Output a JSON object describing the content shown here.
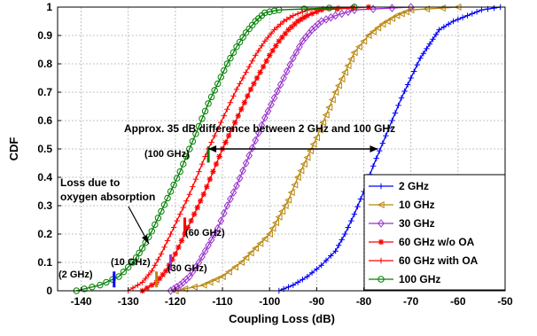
{
  "chart_data": {
    "type": "line",
    "xlabel": "Coupling Loss (dB)",
    "ylabel": "CDF",
    "xlim": [
      -145,
      -50
    ],
    "ylim": [
      0,
      1
    ],
    "xticks": [
      -140,
      -130,
      -120,
      -110,
      -100,
      -90,
      -80,
      -70,
      -60,
      -50
    ],
    "yticks": [
      0,
      0.1,
      0.2,
      0.3,
      0.4,
      0.5,
      0.6,
      0.7,
      0.8,
      0.9,
      1
    ],
    "xtick_labels": [
      "-140",
      "-130",
      "-120",
      "-110",
      "-100",
      "-90",
      "-80",
      "-70",
      "-60",
      "-50"
    ],
    "ytick_labels": [
      "0",
      "0.1",
      "0.2",
      "0.3",
      "0.4",
      "0.5",
      "0.6",
      "0.7",
      "0.8",
      "0.9",
      "1"
    ],
    "grid": true,
    "legend_position": "bottom-right",
    "series": [
      {
        "name": "2 GHz",
        "color": "#0000ff",
        "marker": "plus",
        "x": [
          -98,
          -95,
          -92,
          -89,
          -86,
          -84,
          -82,
          -80,
          -78,
          -76,
          -74,
          -72,
          -70,
          -68,
          -66,
          -64,
          -61,
          -58,
          -55,
          -51
        ],
        "y": [
          0,
          0.02,
          0.05,
          0.09,
          0.14,
          0.2,
          0.27,
          0.35,
          0.44,
          0.52,
          0.6,
          0.68,
          0.75,
          0.82,
          0.87,
          0.92,
          0.95,
          0.97,
          0.99,
          1
        ]
      },
      {
        "name": "10 GHz",
        "color": "#b8860b",
        "marker": "triangle-left",
        "x": [
          -120,
          -114,
          -110,
          -106,
          -103,
          -100,
          -98,
          -96,
          -94,
          -92,
          -90,
          -88,
          -86,
          -84,
          -82,
          -79,
          -76,
          -73,
          -70,
          -60
        ],
        "y": [
          0,
          0.02,
          0.05,
          0.1,
          0.15,
          0.2,
          0.26,
          0.32,
          0.4,
          0.47,
          0.54,
          0.62,
          0.7,
          0.77,
          0.84,
          0.9,
          0.94,
          0.97,
          0.99,
          1
        ]
      },
      {
        "name": "30 GHz",
        "color": "#9932cc",
        "marker": "diamond",
        "x": [
          -121,
          -119,
          -117,
          -115,
          -113,
          -111,
          -109,
          -107,
          -105,
          -103,
          -101,
          -99,
          -97,
          -95,
          -93,
          -91,
          -89,
          -86,
          -82,
          -70
        ],
        "y": [
          0,
          0.02,
          0.05,
          0.1,
          0.16,
          0.22,
          0.3,
          0.37,
          0.45,
          0.53,
          0.61,
          0.68,
          0.75,
          0.82,
          0.88,
          0.92,
          0.95,
          0.97,
          0.99,
          1
        ]
      },
      {
        "name": "60 GHz w/o OA",
        "color": "#ff0000",
        "marker": "star",
        "x": [
          -127,
          -124,
          -122,
          -120,
          -118,
          -116,
          -114,
          -112,
          -110,
          -108,
          -106,
          -104,
          -102,
          -100,
          -98,
          -96,
          -94,
          -92,
          -89,
          -79
        ],
        "y": [
          0,
          0.03,
          0.07,
          0.13,
          0.2,
          0.27,
          0.34,
          0.42,
          0.5,
          0.57,
          0.64,
          0.71,
          0.77,
          0.83,
          0.88,
          0.92,
          0.95,
          0.97,
          0.99,
          1
        ]
      },
      {
        "name": "60 GHz with OA",
        "color": "#ff0000",
        "marker": "plus",
        "x": [
          -130,
          -127,
          -125,
          -123,
          -121,
          -119,
          -117,
          -115,
          -113,
          -111,
          -109,
          -107,
          -105,
          -103,
          -101,
          -99,
          -97,
          -95,
          -92,
          -82
        ],
        "y": [
          0,
          0.03,
          0.07,
          0.13,
          0.2,
          0.27,
          0.34,
          0.42,
          0.5,
          0.57,
          0.64,
          0.71,
          0.77,
          0.83,
          0.88,
          0.92,
          0.95,
          0.97,
          0.99,
          1
        ]
      },
      {
        "name": "100 GHz",
        "color": "#008000",
        "marker": "circle",
        "x": [
          -141,
          -136,
          -132,
          -129,
          -127,
          -125,
          -123,
          -121,
          -119,
          -117,
          -115,
          -113,
          -111,
          -109,
          -107,
          -105,
          -103,
          -101,
          -98,
          -82
        ],
        "y": [
          0,
          0.02,
          0.05,
          0.1,
          0.15,
          0.21,
          0.28,
          0.35,
          0.42,
          0.5,
          0.58,
          0.66,
          0.73,
          0.8,
          0.86,
          0.91,
          0.95,
          0.98,
          0.99,
          1
        ]
      }
    ],
    "median_markers": [
      {
        "x": -133,
        "y": 0.04,
        "color": "#0000ff"
      },
      {
        "x": -124,
        "y": 0.04,
        "color": "#b8860b"
      },
      {
        "x": -121,
        "y": 0.1,
        "color": "#9932cc"
      },
      {
        "x": -118,
        "y": 0.23,
        "color": "#ff0000"
      },
      {
        "x": -113,
        "y": 0.48,
        "color": "#008000"
      }
    ],
    "annotations": {
      "difference_text": "Approx. 35 dB difference between 2 GHz and 100 GHz",
      "loss_text_line1": "Loss due to",
      "loss_text_line2": "oxygen absorption",
      "label_100": "(100 GHz)",
      "label_60": "(60 GHz)",
      "label_30": "(30 GHz)",
      "label_10": "(10 GHz)",
      "label_2": "(2 GHz)",
      "arrow_from_x": -113,
      "arrow_to_x": -77,
      "arrow_y": 0.5
    }
  }
}
